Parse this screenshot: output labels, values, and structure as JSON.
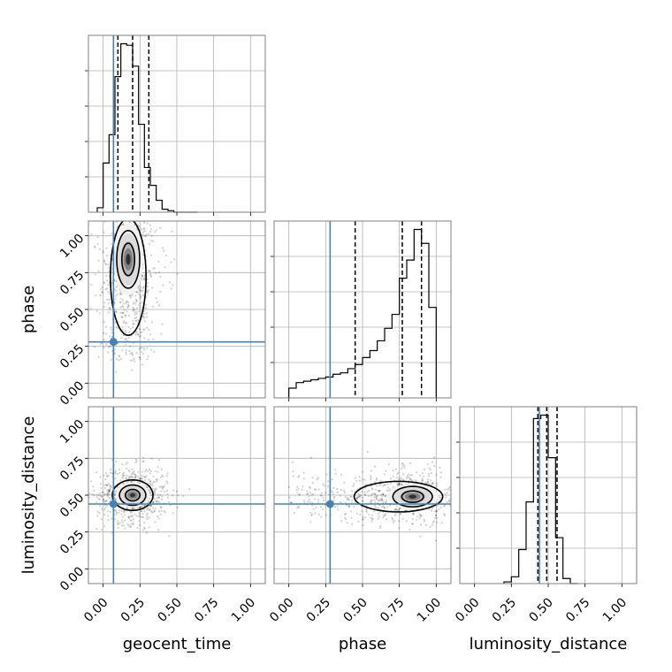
{
  "chart_data": {
    "type": "corner",
    "parameters": [
      "geocent_time",
      "phase",
      "luminosity_distance"
    ],
    "axis_label_text": {
      "geocent_time": "geocent_time",
      "phase": "phase",
      "luminosity_distance": "luminosity_distance"
    },
    "axis_range": [
      -0.1,
      1.1
    ],
    "ticks": [
      0.0,
      0.25,
      0.5,
      0.75,
      1.0
    ],
    "tick_labels": [
      "0.00",
      "0.25",
      "0.50",
      "0.75",
      "1.00"
    ],
    "truths": {
      "geocent_time": 0.07,
      "phase": 0.28,
      "luminosity_distance": 0.44
    },
    "truth_color": "#4682b4",
    "line_color": "#000000",
    "grid": true,
    "histograms": {
      "geocent_time": {
        "bins": [
          -0.04,
          0.0,
          0.04,
          0.08,
          0.12,
          0.16,
          0.2,
          0.24,
          0.28,
          0.32,
          0.36,
          0.4,
          0.44,
          0.48,
          0.52,
          0.56,
          0.6,
          0.64
        ],
        "counts": [
          3,
          33,
          52,
          91,
          113,
          112,
          98,
          59,
          30,
          18,
          8,
          2,
          1,
          0,
          0,
          0,
          0
        ],
        "quantiles": [
          0.1,
          0.2,
          0.31
        ]
      },
      "phase": {
        "bins": [
          0.0,
          0.05,
          0.1,
          0.15,
          0.2,
          0.25,
          0.3,
          0.35,
          0.4,
          0.45,
          0.5,
          0.55,
          0.6,
          0.65,
          0.7,
          0.75,
          0.8,
          0.85,
          0.9,
          0.95,
          1.0
        ],
        "counts": [
          7,
          11,
          12,
          13,
          14,
          15,
          17,
          18,
          21,
          24,
          29,
          34,
          41,
          50,
          60,
          86,
          99,
          121,
          111,
          65
        ],
        "quantiles": [
          0.45,
          0.77,
          0.9
        ]
      },
      "luminosity_distance": {
        "bins": [
          0.2,
          0.25,
          0.3,
          0.35,
          0.4,
          0.45,
          0.5,
          0.55,
          0.6,
          0.65,
          0.7
        ],
        "counts": [
          1,
          4,
          20,
          48,
          97,
          99,
          74,
          27,
          3,
          0
        ],
        "quantiles": [
          0.43,
          0.49,
          0.56
        ]
      }
    },
    "joint_modes": {
      "geocent_time|phase": {
        "center": [
          0.17,
          0.84
        ],
        "spread": [
          0.07,
          0.17
        ],
        "tail_to": 0.15
      },
      "geocent_time|luminosity_distance": {
        "center": [
          0.2,
          0.5
        ],
        "spread": [
          0.08,
          0.06
        ]
      },
      "phase|luminosity_distance": {
        "center": [
          0.84,
          0.49
        ],
        "spread": [
          0.12,
          0.06
        ],
        "tail_to": 0.0
      }
    }
  }
}
